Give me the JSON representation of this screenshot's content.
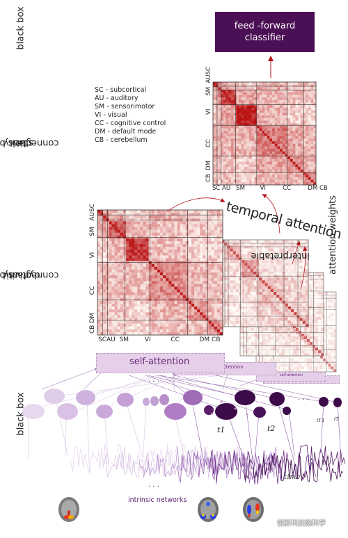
{
  "side_labels": {
    "top": "black box",
    "static": [
      "glass box",
      "static",
      "connectivity"
    ],
    "dynamic": [
      "glass box",
      "dynamic",
      "connectivity"
    ],
    "bottom": "black box"
  },
  "classifier": {
    "line1": "feed -forward",
    "line2": "classifier",
    "color": "#4b0f55"
  },
  "legend": [
    "SC - subcortical",
    "AU - auditory",
    "SM - sensorimotor",
    "VI - visual",
    "CC - cognitive control",
    "DM - default mode",
    "CB - cerebellum"
  ],
  "static_matrix": {
    "x_labels": [
      "SC",
      "AU",
      "SM",
      "VI",
      "CC",
      "DM",
      "CB"
    ],
    "y_labels": [
      "SC",
      "AU",
      "SM",
      "VI",
      "CC",
      "DM",
      "CB"
    ]
  },
  "dynamic_matrix": {
    "x_labels": [
      "SC",
      "AU",
      "SM",
      "VI",
      "CC",
      "DM",
      "CB"
    ],
    "y_labels": [
      "SC",
      "AU",
      "SM",
      "VI",
      "CC",
      "DM",
      "CB"
    ]
  },
  "temporal_attention": {
    "main": "temporal attention",
    "small1": "ttention",
    "small2": "self-attention"
  },
  "interpretable": [
    "interpretable",
    "attention weights"
  ],
  "self_attention": "self-attention",
  "time_labels": [
    "t1",
    "t2",
    "tT-1",
    "tT"
  ],
  "time_axis": "time",
  "dots": ". . .",
  "intrinsic_networks": "intrinsic networks",
  "watermark": "悦影科技脑科学",
  "colors": {
    "purple_dark": "#3d0a4a",
    "purple_mid": "#b07cc6",
    "purple_light": "#e2cdea",
    "red_dark": "#b5121b"
  }
}
